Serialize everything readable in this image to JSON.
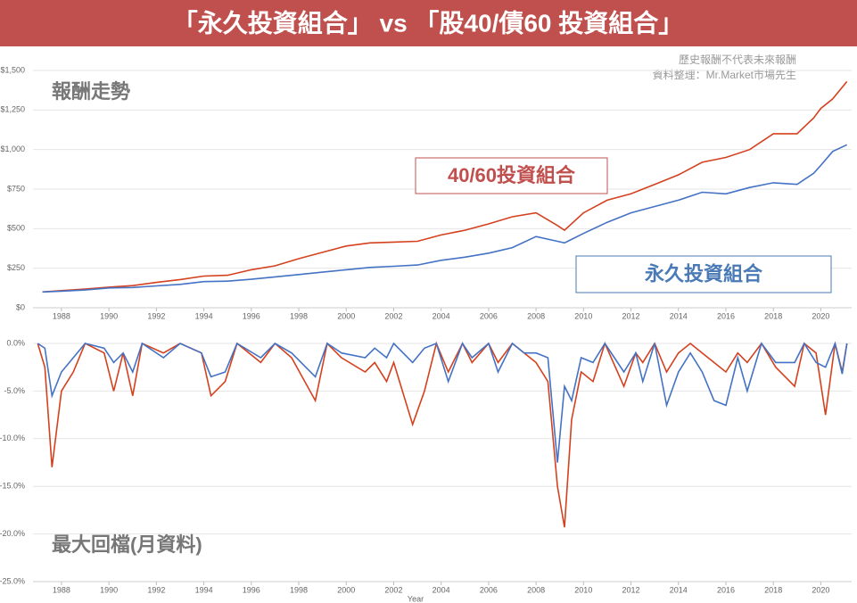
{
  "header": {
    "title": "「永久投資組合」 vs 「股40/債60 投資組合」",
    "notes": [
      "歷史報酬不代表未來報酬",
      "資料整理：Mr.Market市場先生"
    ]
  },
  "chart_data": [
    {
      "type": "line",
      "title": "報酬走勢",
      "x": [
        1987.2,
        1988,
        1989,
        1990,
        1991,
        1992,
        1993,
        1994,
        1995,
        1996,
        1997,
        1998,
        1999,
        2000,
        2001,
        2002,
        2003,
        2004,
        2005,
        2006,
        2007,
        2008,
        2008.9,
        2009.2,
        2010,
        2011,
        2012,
        2013,
        2014,
        2015,
        2016,
        2017,
        2018,
        2019,
        2019.7,
        2020,
        2020.5,
        2021.1
      ],
      "series": [
        {
          "name": "40/60投資組合",
          "color": "#d4411e",
          "values": [
            100,
            108,
            118,
            130,
            140,
            160,
            178,
            200,
            205,
            240,
            265,
            310,
            350,
            390,
            410,
            415,
            420,
            460,
            490,
            530,
            575,
            600,
            520,
            490,
            600,
            680,
            720,
            780,
            840,
            920,
            950,
            1000,
            1100,
            1100,
            1200,
            1260,
            1320,
            1430
          ]
        },
        {
          "name": "永久投資組合",
          "color": "#4472c4",
          "values": [
            100,
            105,
            112,
            125,
            128,
            138,
            148,
            165,
            168,
            180,
            195,
            210,
            225,
            240,
            255,
            262,
            270,
            300,
            320,
            345,
            380,
            450,
            420,
            410,
            470,
            540,
            600,
            640,
            680,
            730,
            720,
            760,
            790,
            780,
            850,
            900,
            988,
            1030
          ]
        }
      ],
      "xlim": [
        1986.8,
        2021.3
      ],
      "xticks": [
        1988,
        1990,
        1992,
        1994,
        1996,
        1998,
        2000,
        2002,
        2004,
        2006,
        2008,
        2010,
        2012,
        2014,
        2016,
        2018,
        2020
      ],
      "ylim": [
        0,
        1500
      ],
      "yticks": [
        {
          "value": 0,
          "label": "$0"
        },
        {
          "value": 250,
          "label": "$250"
        },
        {
          "value": 500,
          "label": "$500"
        },
        {
          "value": 750,
          "label": "$750"
        },
        {
          "value": 1000,
          "label": "$1,000"
        },
        {
          "value": 1250,
          "label": "$1,250"
        },
        {
          "value": 1500,
          "label": "$1,500"
        }
      ],
      "grid": true
    },
    {
      "type": "line",
      "title": "最大回檔(月資料)",
      "x_label": "Year",
      "x": [
        1987.0,
        1987.3,
        1987.6,
        1988.0,
        1988.5,
        1989.0,
        1989.8,
        1990.2,
        1990.6,
        1991.0,
        1991.4,
        1992.3,
        1993.0,
        1993.9,
        1994.3,
        1994.9,
        1995.4,
        1996.4,
        1997.0,
        1997.7,
        1998.7,
        1999.2,
        1999.8,
        2000.8,
        2001.2,
        2001.7,
        2002.0,
        2002.8,
        2003.3,
        2003.8,
        2004.3,
        2004.9,
        2005.3,
        2006.0,
        2006.4,
        2007.0,
        2007.5,
        2008.0,
        2008.5,
        2008.9,
        2009.2,
        2009.5,
        2009.9,
        2010.4,
        2010.9,
        2011.7,
        2012.2,
        2012.5,
        2013.0,
        2013.5,
        2014.0,
        2014.5,
        2015.0,
        2015.5,
        2016.0,
        2016.5,
        2016.9,
        2017.5,
        2018.1,
        2018.9,
        2019.3,
        2019.8,
        2020.2,
        2020.6,
        2020.9,
        2021.1
      ],
      "series": [
        {
          "color": "#d4411e",
          "values": [
            0,
            -2.5,
            -13,
            -5,
            -3,
            0,
            -1,
            -5,
            -1,
            -5.5,
            0,
            -1,
            0,
            -1,
            -5.5,
            -4,
            0,
            -2,
            0,
            -1.5,
            -6,
            0,
            -1.5,
            -3,
            -2,
            -4,
            -2,
            -8.5,
            -5,
            0,
            -3,
            0,
            -2,
            0,
            -2,
            0,
            -1,
            -2,
            -4,
            -15,
            -19.3,
            -8,
            -3,
            -4,
            0,
            -4.5,
            -1,
            -2,
            0,
            -3,
            -1,
            0,
            -1,
            -2,
            -3,
            -1,
            -2,
            0,
            -2.5,
            -4.5,
            0,
            -1,
            -7.5,
            0,
            -3,
            0
          ]
        },
        {
          "color": "#4472c4",
          "values": [
            0,
            -0.5,
            -5.5,
            -3,
            -1.5,
            0,
            -0.5,
            -2,
            -1,
            -3,
            0,
            -1.5,
            0,
            -1,
            -3.5,
            -3,
            0,
            -1.5,
            0,
            -1,
            -3.5,
            0,
            -1,
            -1.5,
            -0.5,
            -1.5,
            0,
            -2,
            -0.5,
            0,
            -4,
            0,
            -1.5,
            0,
            -3,
            0,
            -1,
            -1,
            -1.5,
            -12.5,
            -4.5,
            -6,
            -1.5,
            -2,
            0,
            -3,
            -1,
            -4,
            0,
            -6.5,
            -3,
            -1,
            -3,
            -6,
            -6.5,
            -1.5,
            -5,
            0,
            -2,
            -2,
            0,
            -2,
            -2.5,
            0,
            -3.2,
            0
          ]
        }
      ],
      "xlim": [
        1986.8,
        2021.3
      ],
      "xticks": [
        1988,
        1990,
        1992,
        1994,
        1996,
        1998,
        2000,
        2002,
        2004,
        2006,
        2008,
        2010,
        2012,
        2014,
        2016,
        2018,
        2020
      ],
      "ylim": [
        -25,
        0
      ],
      "yticks": [
        {
          "value": 0,
          "label": "0.0%"
        },
        {
          "value": -5,
          "label": "-5.0%"
        },
        {
          "value": -10,
          "label": "-10.0%"
        },
        {
          "value": -15,
          "label": "-15.0%"
        },
        {
          "value": -20,
          "label": "-20.0%"
        },
        {
          "value": -25,
          "label": "-25.0%"
        }
      ],
      "grid": true
    }
  ]
}
